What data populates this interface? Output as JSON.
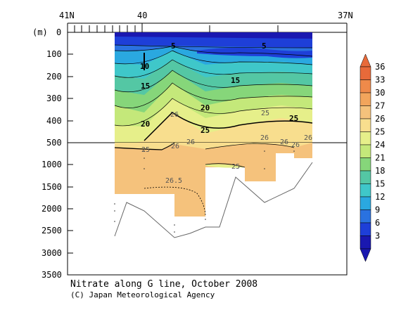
{
  "chart_data": {
    "type": "heatmap",
    "title": "Nitrate along G line, October 2008",
    "credit": "(C) Japan Meteorological Agency",
    "y_unit_label": "(m)",
    "x_ticks": [
      "41N",
      "40",
      "37N"
    ],
    "y_ticks_upper": [
      "0",
      "100",
      "200",
      "300",
      "400",
      "500"
    ],
    "y_ticks_lower": [
      "1000",
      "1500",
      "2000",
      "2500",
      "3000",
      "3500"
    ],
    "ylim_upper": [
      0,
      500
    ],
    "ylim_lower": [
      500,
      3500
    ],
    "colorbar": {
      "labels": [
        "36",
        "33",
        "30",
        "27",
        "26",
        "25",
        "24",
        "21",
        "18",
        "15",
        "12",
        "9",
        "6",
        "3"
      ],
      "colors": [
        "#e86a3a",
        "#ef8a4a",
        "#f2a55c",
        "#f5c27c",
        "#f8de8e",
        "#e6ef8a",
        "#c4e87a",
        "#86d67a",
        "#54c7a4",
        "#3fc7c9",
        "#2aa8e0",
        "#2a72e0",
        "#1e3fd8",
        "#1a18b0"
      ]
    },
    "contour_labels": [
      "5",
      "5",
      "10",
      "15",
      "15",
      "20",
      "20",
      "25",
      "25",
      "25",
      "25",
      "26",
      "26",
      "26",
      "26",
      "26",
      "26",
      "26",
      "25",
      "26.5"
    ]
  }
}
